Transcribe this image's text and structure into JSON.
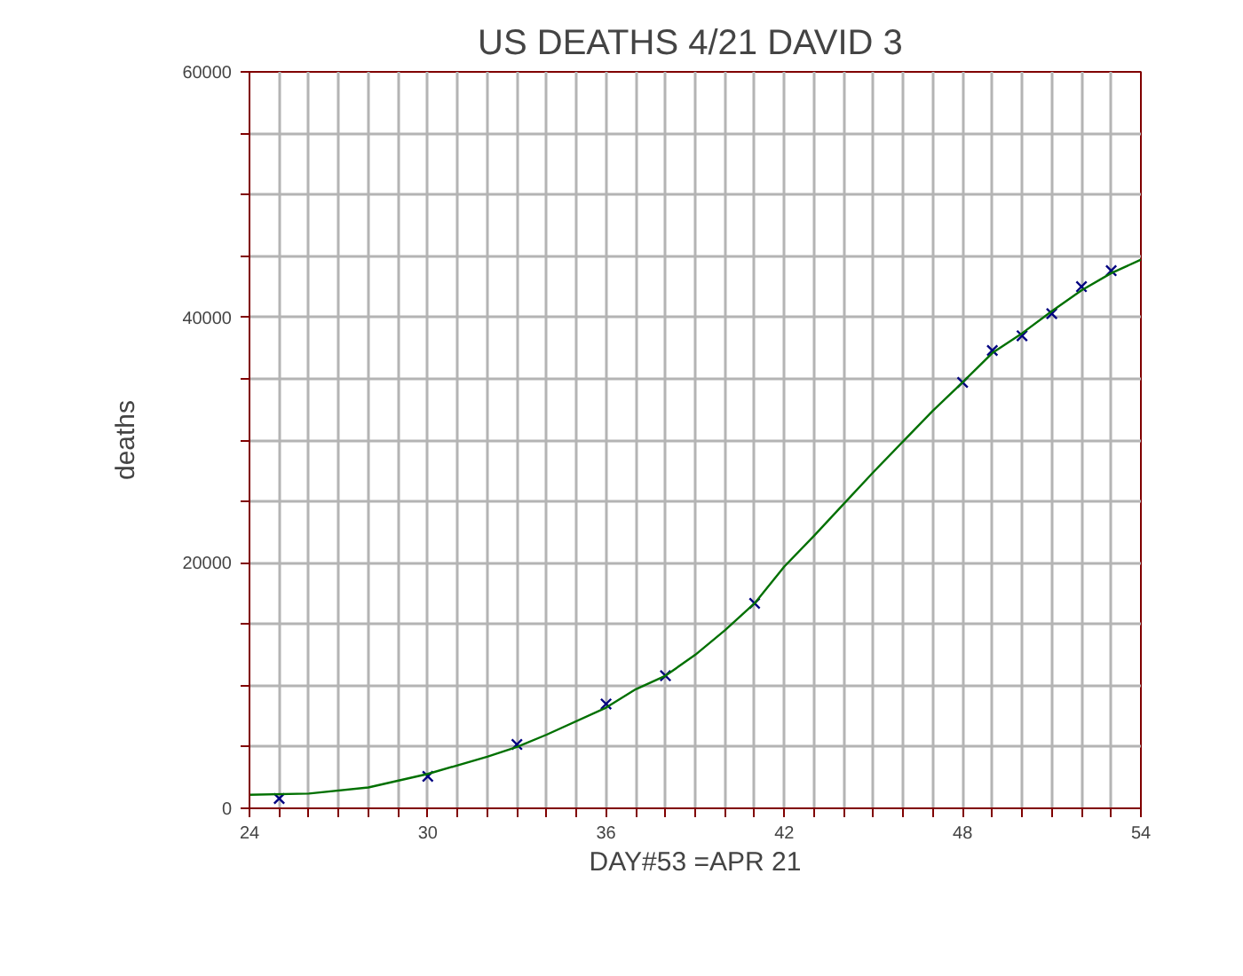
{
  "chart_data": {
    "type": "scatter",
    "title": "US DEATHS 4/21  DAVID 3",
    "xlabel": "DAY#53 =APR 21",
    "ylabel": "deaths",
    "xlim": [
      24,
      54
    ],
    "ylim": [
      0,
      60000
    ],
    "xticks": [
      24,
      {
        "value": 25,
        "label": null
      },
      {
        "value": 26,
        "label": null
      },
      {
        "value": 27,
        "label": null
      },
      {
        "value": 28,
        "label": null
      },
      {
        "value": 29,
        "label": null
      },
      30,
      {
        "value": 31,
        "label": null
      },
      {
        "value": 32,
        "label": null
      },
      {
        "value": 33,
        "label": null
      },
      {
        "value": 34,
        "label": null
      },
      {
        "value": 35,
        "label": null
      },
      36,
      {
        "value": 37,
        "label": null
      },
      {
        "value": 38,
        "label": null
      },
      {
        "value": 39,
        "label": null
      },
      {
        "value": 40,
        "label": null
      },
      {
        "value": 41,
        "label": null
      },
      42,
      {
        "value": 43,
        "label": null
      },
      {
        "value": 44,
        "label": null
      },
      {
        "value": 45,
        "label": null
      },
      {
        "value": 46,
        "label": null
      },
      {
        "value": 47,
        "label": null
      },
      48,
      {
        "value": 49,
        "label": null
      },
      {
        "value": 50,
        "label": null
      },
      {
        "value": 51,
        "label": null
      },
      {
        "value": 52,
        "label": null
      },
      {
        "value": 53,
        "label": null
      },
      54
    ],
    "yticks": [
      0,
      {
        "value": 5000,
        "label": null
      },
      {
        "value": 10000,
        "label": null
      },
      {
        "value": 15000,
        "label": null
      },
      20000,
      {
        "value": 25000,
        "label": null
      },
      {
        "value": 30000,
        "label": null
      },
      {
        "value": 35000,
        "label": null
      },
      40000,
      {
        "value": 45000,
        "label": null
      },
      {
        "value": 50000,
        "label": null
      },
      {
        "value": 55000,
        "label": null
      },
      60000
    ],
    "grid": true,
    "series": [
      {
        "marker": "cross",
        "color": "#000080",
        "x": [
          25,
          30,
          33,
          36,
          38,
          41,
          48,
          49,
          50,
          51,
          52,
          53
        ],
        "values": [
          800,
          2600,
          5200,
          8500,
          10800,
          16700,
          34700,
          37300,
          38500,
          40300,
          42500,
          43800
        ]
      },
      {
        "type": "line",
        "marker": "none",
        "line_style": "solid",
        "color": "#007000",
        "x": [
          24,
          26,
          28,
          30,
          32,
          33,
          34,
          36,
          37,
          38,
          39,
          40,
          41,
          42,
          43,
          44,
          45,
          46,
          47,
          48,
          49,
          50,
          51,
          52,
          53,
          54
        ],
        "values": [
          1100,
          1200,
          1700,
          2800,
          4200,
          5000,
          6000,
          8200,
          9700,
          10800,
          12500,
          14500,
          16700,
          19700,
          22200,
          24800,
          27400,
          29900,
          32400,
          34700,
          37100,
          38700,
          40500,
          42200,
          43600,
          44700
        ]
      }
    ]
  }
}
